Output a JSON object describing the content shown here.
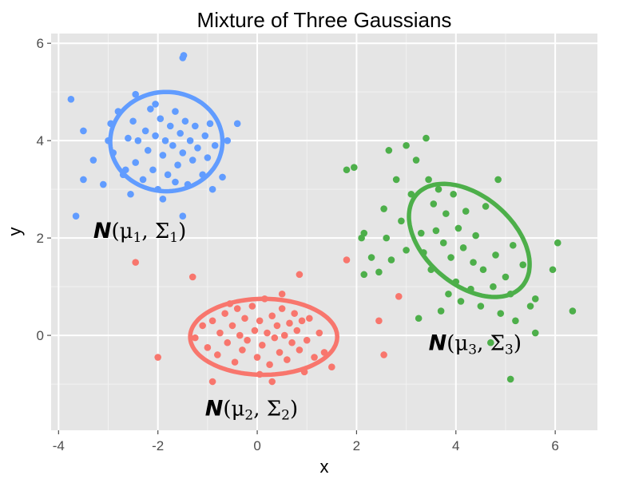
{
  "chart_data": {
    "type": "scatter",
    "title": "Mixture of Three Gaussians",
    "xlabel": "x",
    "ylabel": "y",
    "xlim": [
      -4.15,
      6.85
    ],
    "ylim": [
      -1.95,
      6.2
    ],
    "xticks": [
      -4,
      -2,
      0,
      2,
      4,
      6
    ],
    "yticks": [
      0,
      2,
      4,
      6
    ],
    "grid": true,
    "panel_background": "#e5e5e5",
    "series": [
      {
        "color": "#619cff",
        "ellipse": {
          "center": [
            -1.83,
            3.98
          ],
          "rx": 1.13,
          "ry": 1.02,
          "angle": 0
        },
        "label": {
          "n": "N",
          "open": "(",
          "mu": "μ",
          "mu_sub": "1",
          "sep": ", ",
          "sigma": "Σ",
          "sigma_sub": "1",
          "close": ")",
          "anchor": [
            -3.3,
            2.0
          ]
        },
        "points": [
          [
            -3.65,
            2.45
          ],
          [
            -3.5,
            3.2
          ],
          [
            -3.3,
            3.6
          ],
          [
            -3.1,
            3.1
          ],
          [
            -3.0,
            4.0
          ],
          [
            -2.95,
            4.35
          ],
          [
            -2.9,
            3.75
          ],
          [
            -2.8,
            4.6
          ],
          [
            -2.7,
            3.3
          ],
          [
            -2.6,
            4.05
          ],
          [
            -2.55,
            2.9
          ],
          [
            -2.5,
            4.4
          ],
          [
            -2.45,
            3.55
          ],
          [
            -2.4,
            4.0
          ],
          [
            -2.3,
            3.2
          ],
          [
            -2.25,
            4.2
          ],
          [
            -2.2,
            3.8
          ],
          [
            -2.15,
            4.65
          ],
          [
            -2.1,
            3.4
          ],
          [
            -2.05,
            4.1
          ],
          [
            -2.0,
            3.0
          ],
          [
            -1.95,
            4.45
          ],
          [
            -1.9,
            3.7
          ],
          [
            -1.85,
            4.0
          ],
          [
            -1.8,
            3.3
          ],
          [
            -1.75,
            4.3
          ],
          [
            -1.7,
            3.9
          ],
          [
            -1.65,
            4.6
          ],
          [
            -1.6,
            3.5
          ],
          [
            -1.55,
            4.15
          ],
          [
            -1.5,
            3.75
          ],
          [
            -1.45,
            4.4
          ],
          [
            -1.4,
            3.1
          ],
          [
            -1.35,
            4.0
          ],
          [
            -1.3,
            3.6
          ],
          [
            -1.25,
            4.3
          ],
          [
            -1.2,
            3.85
          ],
          [
            -1.1,
            3.3
          ],
          [
            -1.05,
            4.1
          ],
          [
            -1.0,
            3.65
          ],
          [
            -0.95,
            4.35
          ],
          [
            -0.9,
            3.0
          ],
          [
            -0.85,
            3.9
          ],
          [
            -0.7,
            3.25
          ],
          [
            -0.6,
            4.0
          ],
          [
            -0.4,
            4.35
          ],
          [
            -3.75,
            4.85
          ],
          [
            -2.45,
            4.95
          ],
          [
            -1.9,
            2.8
          ],
          [
            -1.5,
            5.7
          ],
          [
            -1.48,
            5.75
          ],
          [
            -1.5,
            2.45
          ],
          [
            -3.5,
            4.2
          ],
          [
            -2.05,
            4.75
          ],
          [
            -2.65,
            3.4
          ],
          [
            -1.65,
            3.15
          ]
        ]
      },
      {
        "color": "#f8766d",
        "ellipse": {
          "center": [
            0.13,
            -0.03
          ],
          "rx": 1.48,
          "ry": 0.78,
          "angle": 0
        },
        "label": {
          "n": "N",
          "open": "(",
          "mu": "μ",
          "mu_sub": "2",
          "sep": ", ",
          "sigma": "Σ",
          "sigma_sub": "2",
          "close": ")",
          "anchor": [
            -1.05,
            -1.65
          ]
        },
        "points": [
          [
            -1.25,
            -0.05
          ],
          [
            -1.1,
            0.2
          ],
          [
            -1.0,
            -0.25
          ],
          [
            -0.9,
            0.3
          ],
          [
            -0.8,
            -0.4
          ],
          [
            -0.75,
            0.05
          ],
          [
            -0.65,
            0.45
          ],
          [
            -0.6,
            -0.15
          ],
          [
            -0.5,
            0.2
          ],
          [
            -0.45,
            -0.55
          ],
          [
            -0.4,
            0.55
          ],
          [
            -0.35,
            0.0
          ],
          [
            -0.3,
            -0.3
          ],
          [
            -0.25,
            0.35
          ],
          [
            -0.2,
            -0.1
          ],
          [
            -0.1,
            0.6
          ],
          [
            -0.05,
            0.1
          ],
          [
            0.0,
            -0.45
          ],
          [
            0.05,
            0.3
          ],
          [
            0.1,
            -0.2
          ],
          [
            0.15,
            0.75
          ],
          [
            0.2,
            0.05
          ],
          [
            0.25,
            -0.6
          ],
          [
            0.3,
            0.4
          ],
          [
            0.35,
            -0.05
          ],
          [
            0.4,
            0.2
          ],
          [
            0.45,
            -0.35
          ],
          [
            0.5,
            0.55
          ],
          [
            0.55,
            0.0
          ],
          [
            0.6,
            -0.5
          ],
          [
            0.65,
            0.25
          ],
          [
            0.7,
            -0.15
          ],
          [
            0.75,
            0.45
          ],
          [
            0.8,
            0.1
          ],
          [
            0.85,
            -0.3
          ],
          [
            0.9,
            0.3
          ],
          [
            1.0,
            -0.1
          ],
          [
            1.05,
            0.35
          ],
          [
            1.15,
            -0.45
          ],
          [
            1.25,
            0.05
          ],
          [
            1.35,
            -0.35
          ],
          [
            1.5,
            -0.65
          ],
          [
            -1.3,
            1.2
          ],
          [
            -2.45,
            1.5
          ],
          [
            -2.0,
            -0.45
          ],
          [
            0.85,
            1.25
          ],
          [
            1.8,
            1.55
          ],
          [
            -0.9,
            -0.95
          ],
          [
            0.3,
            -0.95
          ],
          [
            2.45,
            0.3
          ],
          [
            2.55,
            -0.4
          ],
          [
            2.85,
            0.8
          ],
          [
            -0.55,
            0.65
          ],
          [
            0.05,
            -0.8
          ],
          [
            0.95,
            -0.75
          ],
          [
            0.5,
            0.85
          ]
        ]
      },
      {
        "color": "#4daf4a",
        "ellipse": {
          "center": [
            4.27,
            1.95
          ],
          "rx": 1.42,
          "ry": 0.9,
          "angle": -42
        },
        "label": {
          "n": "N",
          "open": "(",
          "mu": "μ",
          "mu_sub": "3",
          "sep": ", ",
          "sigma": "Σ",
          "sigma_sub": "3",
          "close": ")",
          "anchor": [
            3.45,
            -0.3
          ]
        },
        "points": [
          [
            1.8,
            3.4
          ],
          [
            1.95,
            3.45
          ],
          [
            2.1,
            2.0
          ],
          [
            2.15,
            2.1
          ],
          [
            2.15,
            1.25
          ],
          [
            2.45,
            1.3
          ],
          [
            2.55,
            2.6
          ],
          [
            2.6,
            2.0
          ],
          [
            2.65,
            3.8
          ],
          [
            2.7,
            1.55
          ],
          [
            2.8,
            3.2
          ],
          [
            2.9,
            2.35
          ],
          [
            3.0,
            3.9
          ],
          [
            3.0,
            1.75
          ],
          [
            3.1,
            2.9
          ],
          [
            3.2,
            3.6
          ],
          [
            3.3,
            2.1
          ],
          [
            3.35,
            1.7
          ],
          [
            3.4,
            4.05
          ],
          [
            3.45,
            3.2
          ],
          [
            3.5,
            1.35
          ],
          [
            3.55,
            2.7
          ],
          [
            3.6,
            2.15
          ],
          [
            3.65,
            3.0
          ],
          [
            3.7,
            0.5
          ],
          [
            3.75,
            1.9
          ],
          [
            3.8,
            2.5
          ],
          [
            3.85,
            0.85
          ],
          [
            3.9,
            1.6
          ],
          [
            3.95,
            2.9
          ],
          [
            4.0,
            1.1
          ],
          [
            4.05,
            2.2
          ],
          [
            4.1,
            0.7
          ],
          [
            4.15,
            1.8
          ],
          [
            4.2,
            2.55
          ],
          [
            4.3,
            0.95
          ],
          [
            4.35,
            1.5
          ],
          [
            4.4,
            2.05
          ],
          [
            4.5,
            0.6
          ],
          [
            4.55,
            1.35
          ],
          [
            4.6,
            2.65
          ],
          [
            4.7,
            -0.15
          ],
          [
            4.75,
            1.0
          ],
          [
            4.8,
            1.65
          ],
          [
            4.85,
            3.2
          ],
          [
            4.9,
            0.45
          ],
          [
            5.0,
            1.2
          ],
          [
            5.1,
            0.85
          ],
          [
            5.15,
            1.85
          ],
          [
            5.2,
            0.3
          ],
          [
            5.35,
            1.45
          ],
          [
            5.5,
            0.6
          ],
          [
            5.6,
            0.75
          ],
          [
            5.95,
            1.35
          ],
          [
            6.05,
            1.9
          ],
          [
            6.35,
            0.5
          ],
          [
            5.1,
            -0.9
          ],
          [
            5.6,
            0.05
          ],
          [
            2.3,
            1.6
          ],
          [
            3.25,
            0.35
          ]
        ]
      }
    ]
  }
}
